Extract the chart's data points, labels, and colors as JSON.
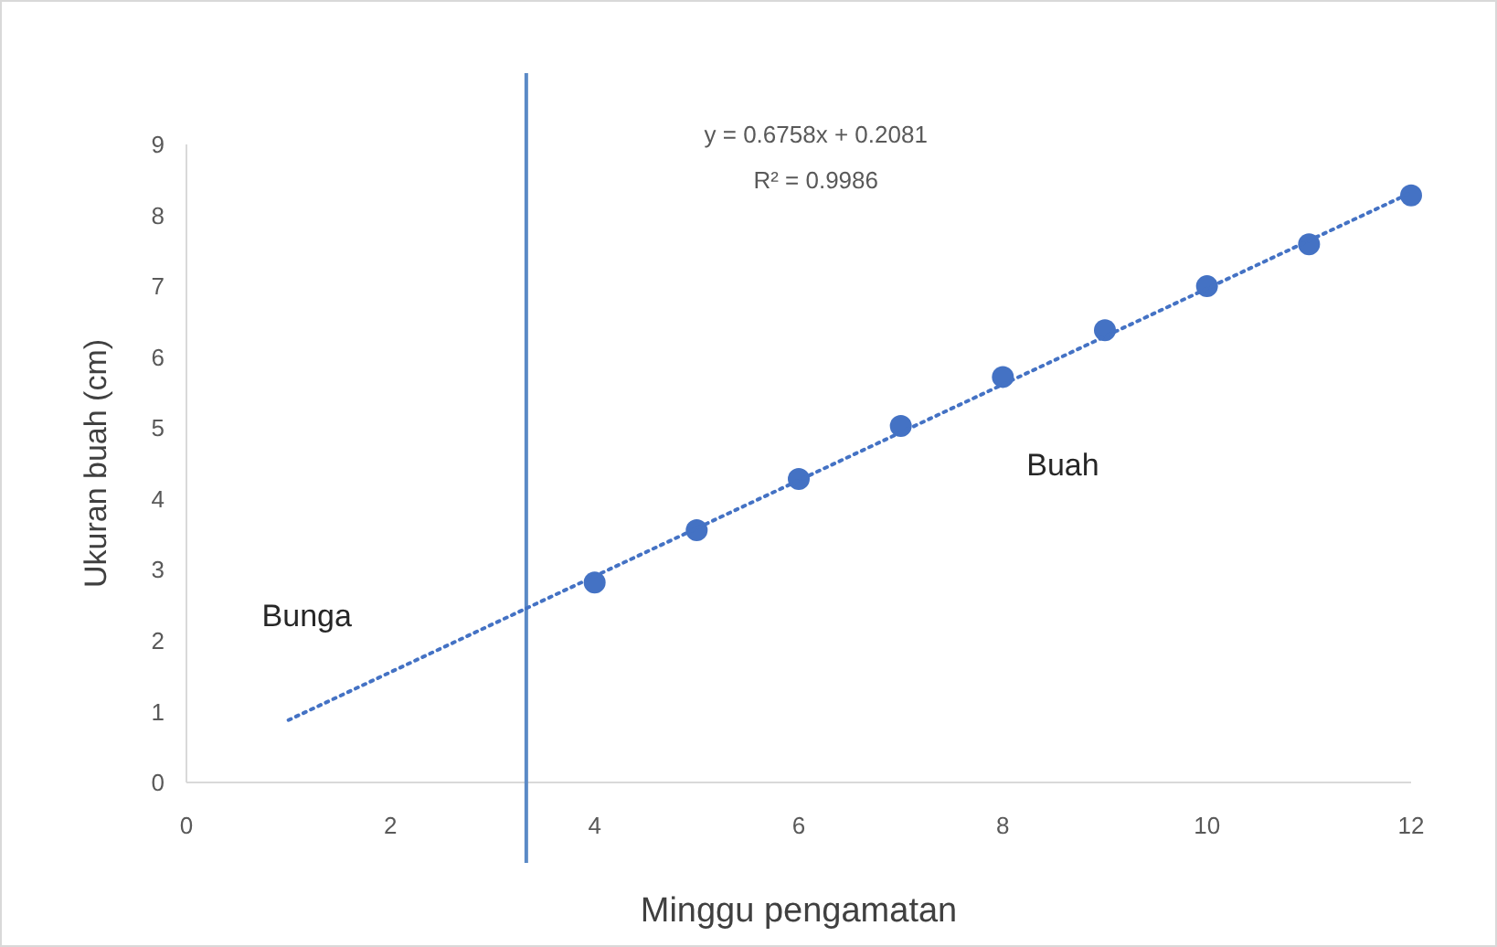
{
  "chart_data": {
    "type": "scatter",
    "xlabel": "Minggu pengamatan",
    "ylabel": "Ukuran buah (cm)",
    "xlim": [
      0,
      12
    ],
    "xticks": [
      0,
      2,
      4,
      6,
      8,
      10,
      12
    ],
    "ylim": [
      0,
      9
    ],
    "yticks": [
      0,
      1,
      2,
      3,
      4,
      5,
      6,
      7,
      8,
      9
    ],
    "series": [
      {
        "type": "scatter",
        "color": "#4472c4",
        "marker": "circle",
        "x": [
          4,
          5,
          6,
          7,
          8,
          9,
          10,
          11,
          12
        ],
        "values": [
          2.82,
          3.56,
          4.28,
          5.03,
          5.72,
          6.38,
          7.0,
          7.59,
          8.28
        ]
      },
      {
        "type": "line",
        "color": "#4472c4",
        "line_style": "dotted",
        "marker": "none",
        "x": [
          1,
          12
        ],
        "values": [
          0.88,
          8.32
        ]
      }
    ],
    "ref_lines": [
      {
        "axis": "x",
        "value": 3.33,
        "color": "#5b8ac6",
        "line_style": "solid"
      }
    ],
    "annotations": [
      "y = 0.6758x + 0.2081",
      "R² = 0.9986",
      "Bunga",
      "Buah"
    ],
    "grid": false
  }
}
